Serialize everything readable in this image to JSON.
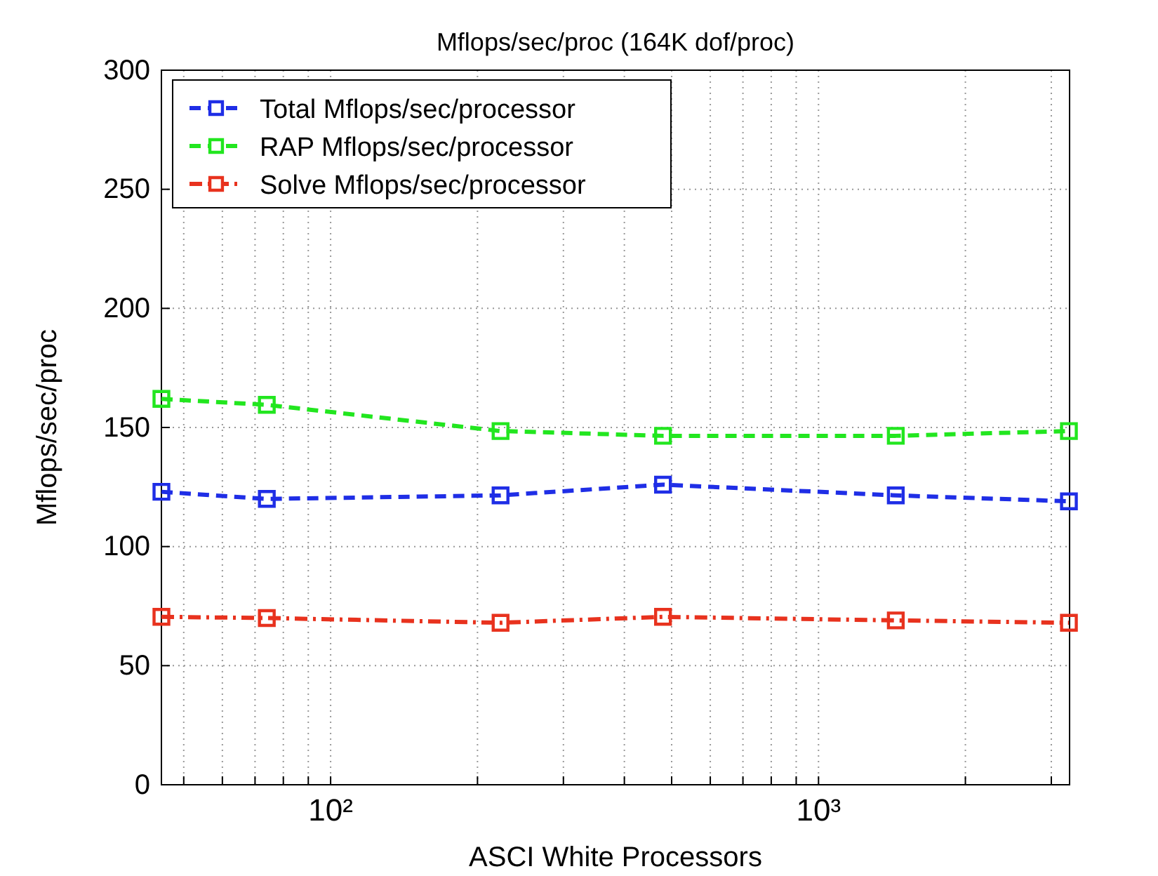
{
  "chart_data": {
    "type": "line",
    "title": "Mflops/sec/proc (164K dof/proc)",
    "xlabel": "ASCI White Processors",
    "ylabel": "Mflops/sec/proc",
    "x": [
      45,
      74,
      223,
      480,
      1440,
      3260
    ],
    "series": [
      {
        "name": "Total Mflops/sec/processor",
        "color": "#1f2ee6",
        "line_style": "dashed",
        "values": [
          123,
          120,
          121.5,
          126,
          121.5,
          119
        ]
      },
      {
        "name": "RAP Mflops/sec/processor",
        "color": "#22e61f",
        "line_style": "dashed",
        "values": [
          162,
          159.5,
          148.5,
          146.5,
          146.5,
          148.5
        ]
      },
      {
        "name": "Solve Mflops/sec/processor",
        "color": "#e8321e",
        "line_style": "dashdot",
        "values": [
          70.5,
          70,
          68,
          70.5,
          69,
          68
        ]
      }
    ],
    "log": "x",
    "xlim": [
      45,
      3270
    ],
    "ylim": [
      0,
      300
    ],
    "xticks": [
      {
        "value": 50,
        "label": null
      },
      {
        "value": 60,
        "label": null
      },
      {
        "value": 70,
        "label": null
      },
      {
        "value": 80,
        "label": null
      },
      {
        "value": 90,
        "label": null
      },
      {
        "value": 100,
        "label": "10²"
      },
      {
        "value": 200,
        "label": null
      },
      {
        "value": 300,
        "label": null
      },
      {
        "value": 400,
        "label": null
      },
      {
        "value": 500,
        "label": null
      },
      {
        "value": 600,
        "label": null
      },
      {
        "value": 700,
        "label": null
      },
      {
        "value": 800,
        "label": null
      },
      {
        "value": 900,
        "label": null
      },
      {
        "value": 1000,
        "label": "10³"
      },
      {
        "value": 2000,
        "label": null
      },
      {
        "value": 3000,
        "label": null
      }
    ],
    "yticks": [
      0,
      50,
      100,
      150,
      200,
      250,
      300
    ],
    "grid": true,
    "legend": "top left",
    "marker": "square"
  }
}
